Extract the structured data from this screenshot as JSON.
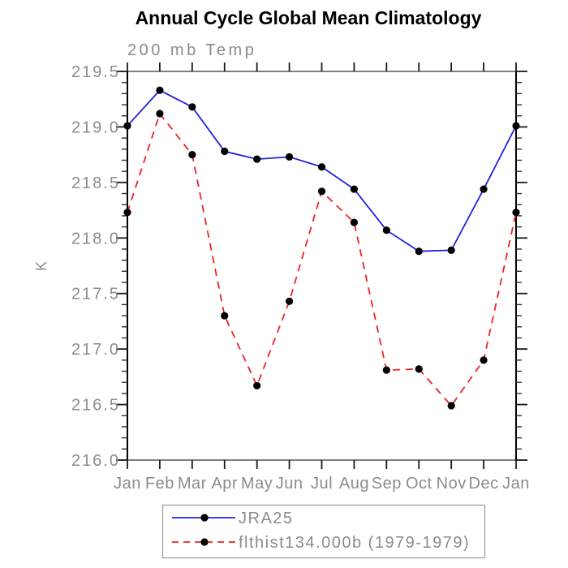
{
  "page": {
    "background_color": "#ffffff"
  },
  "chart_data": {
    "type": "line",
    "title": "Annual Cycle Global Mean Climatology",
    "subtitle": "200 mb Temp",
    "xlabel": "",
    "ylabel": "K",
    "categories": [
      "Jan",
      "Feb",
      "Mar",
      "Apr",
      "May",
      "Jun",
      "Jul",
      "Aug",
      "Sep",
      "Oct",
      "Nov",
      "Dec",
      "Jan"
    ],
    "ylim": [
      216.0,
      219.5
    ],
    "ytick_step": 0.5,
    "yminor_step": 0.1,
    "ytick_labels": [
      "219.5",
      "219.0",
      "218.5",
      "218.0",
      "217.5",
      "217.0",
      "216.5",
      "216.0"
    ],
    "grid": false,
    "legend_position": "bottom",
    "series": [
      {
        "name": "JRA25",
        "line_style": "solid",
        "color": "#2222dd",
        "marker": "filled-circle",
        "marker_color": "#000000",
        "values": [
          219.01,
          219.33,
          219.18,
          218.78,
          218.71,
          218.73,
          218.64,
          218.44,
          218.07,
          217.88,
          217.89,
          218.44,
          219.01
        ]
      },
      {
        "name": "flthist134.000b (1979-1979)",
        "line_style": "dashed",
        "color": "#ee2222",
        "marker": "filled-circle",
        "marker_color": "#000000",
        "values": [
          218.23,
          219.12,
          218.75,
          217.3,
          216.67,
          217.43,
          218.42,
          218.14,
          216.81,
          216.82,
          216.49,
          216.9,
          218.23
        ]
      }
    ],
    "colors": {
      "title": "#000000",
      "axis_text": "#8c8c8c",
      "frame_horizontal": "#7f7f7f",
      "frame_vertical": "#000000",
      "major_tick": "#1a1a1a",
      "minor_tick": "#2e2e2e",
      "legend_border": "#9a9a9a",
      "marker": "#000000"
    }
  }
}
